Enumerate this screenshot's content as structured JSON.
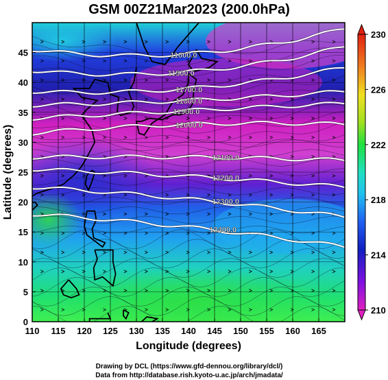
{
  "title": "GSM 00Z21Mar2023 (200.0hPa)",
  "xlabel": "Longitude (degrees)",
  "ylabel": "Latitude  (degrees)",
  "credits": [
    "Drawing by DCL (https://www.gfd-dennou.org/library/dcl/)",
    "Data from http://database.rish.kyoto-u.ac.jp/arch/jmadata/"
  ],
  "colorbar": {
    "min": 210,
    "max": 230,
    "ticks": [
      "210",
      "214",
      "218",
      "222",
      "226",
      "230"
    ]
  },
  "chart_data": {
    "type": "heatmap",
    "xlim": [
      110,
      170
    ],
    "ylim": [
      0,
      50
    ],
    "xticks": [
      "110",
      "115",
      "120",
      "125",
      "130",
      "135",
      "140",
      "145",
      "150",
      "155",
      "160",
      "165"
    ],
    "yticks": [
      "0",
      "5",
      "10",
      "15",
      "20",
      "25",
      "30",
      "35",
      "40",
      "45"
    ],
    "contours": [
      {
        "value": 11600,
        "label": "11600.0",
        "lat_at_110": 45.5,
        "lat_at_140": 44.8,
        "lat_at_170": 49.0,
        "label_lon": 136.5
      },
      {
        "value": 11500,
        "label": "11500.0",
        "lat_at_110": 42.0,
        "lat_at_140": 41.8,
        "lat_at_170": 46.0,
        "label_lon": 136.0
      },
      {
        "value": 11700,
        "label": "11700.0",
        "lat_at_110": 38.5,
        "lat_at_140": 39.0,
        "lat_at_170": 42.5,
        "label_lon": 137.5
      },
      {
        "value": 11800,
        "label": "11800.0",
        "lat_at_110": 36.2,
        "lat_at_140": 37.0,
        "lat_at_170": 38.5,
        "label_lon": 137.5
      },
      {
        "value": 11900,
        "label": "11900.0",
        "lat_at_110": 34.0,
        "lat_at_140": 35.3,
        "lat_at_170": 36.5,
        "label_lon": 137.0
      },
      {
        "value": 12000,
        "label": "12000.0",
        "lat_at_110": 31.5,
        "lat_at_140": 33.0,
        "lat_at_170": 33.0,
        "label_lon": 137.5
      },
      {
        "value": 12100,
        "label": "12100.0",
        "lat_at_110": 27.5,
        "lat_at_140": 27.5,
        "lat_at_170": 27.0,
        "label_lon": 144.5
      },
      {
        "value": 12200,
        "label": "12200.0",
        "lat_at_110": 25.5,
        "lat_at_140": 24.3,
        "lat_at_170": 22.5,
        "label_lon": 144.5
      },
      {
        "value": 12300,
        "label": "12300.0",
        "lat_at_110": 22.5,
        "lat_at_140": 20.5,
        "lat_at_170": 17.5,
        "label_lon": 144.5
      },
      {
        "value": 12400,
        "label": "12400.0",
        "lat_at_110": 18.0,
        "lat_at_140": 15.8,
        "lat_at_170": 12.5,
        "label_lon": 144.0
      }
    ]
  }
}
